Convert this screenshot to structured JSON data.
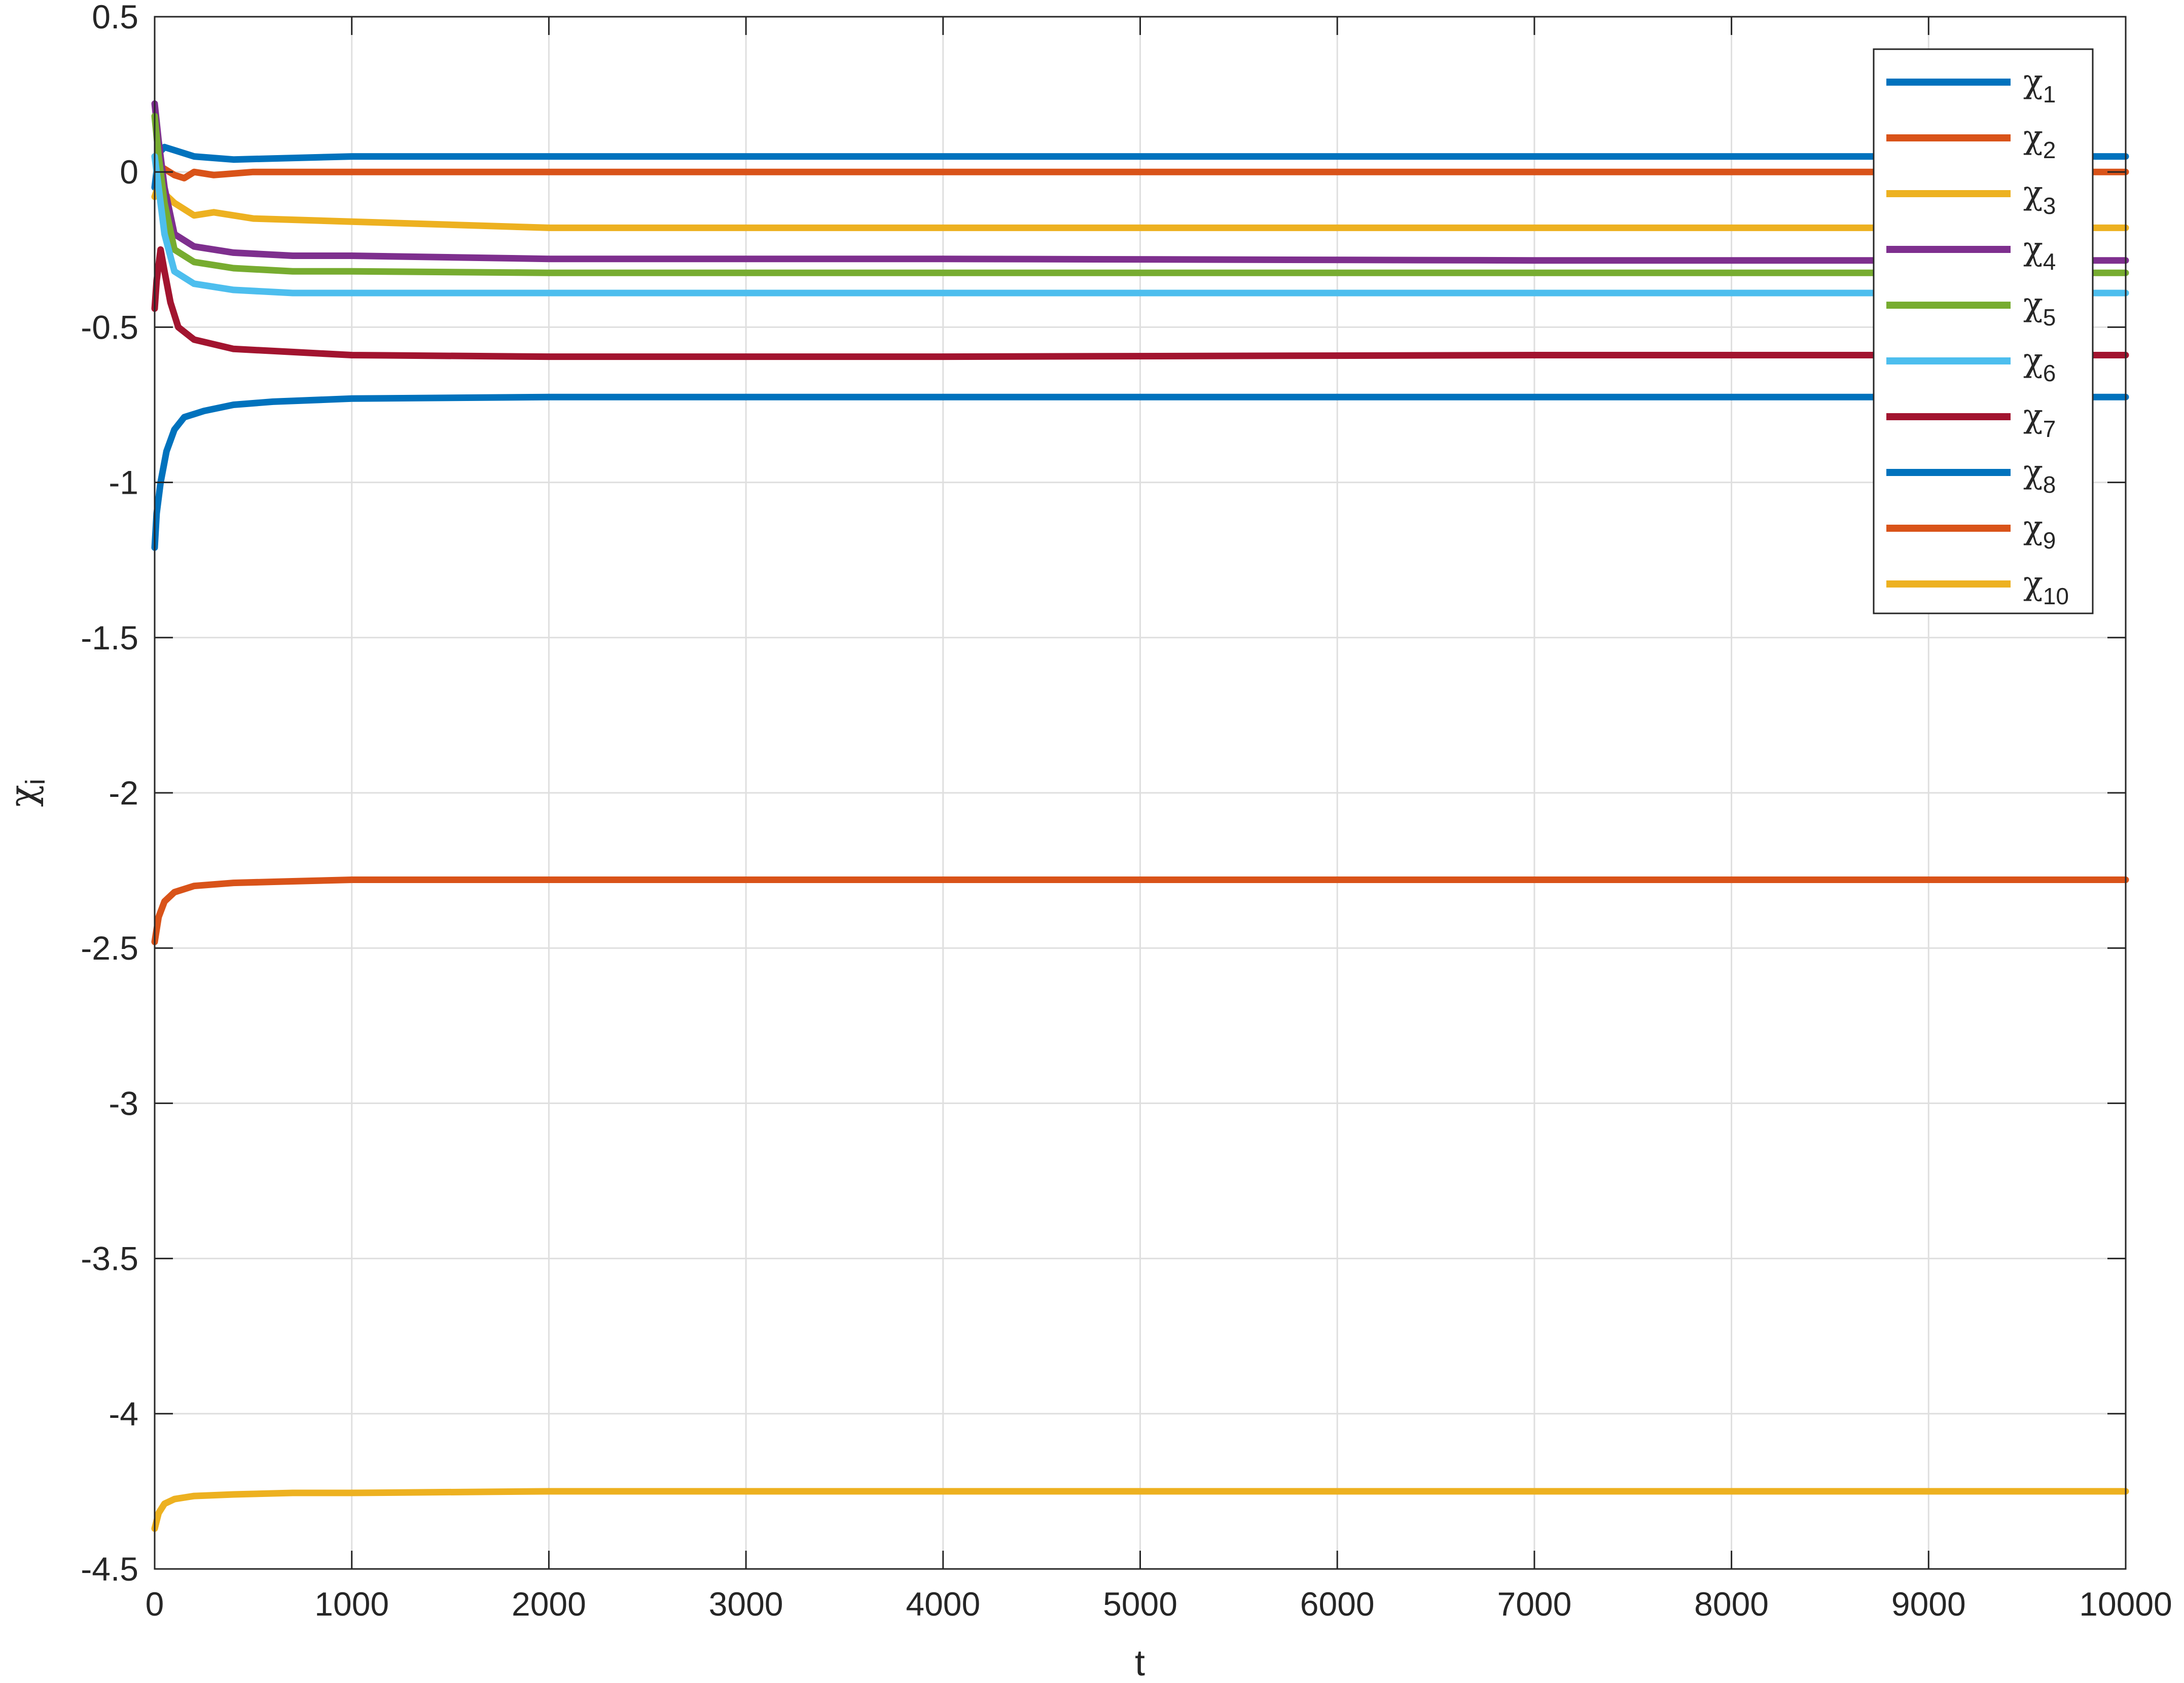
{
  "chart_data": {
    "type": "line",
    "xlabel": "t",
    "ylabel_symbol": "χ",
    "ylabel_sub": "i",
    "xlim": [
      0,
      10000
    ],
    "ylim": [
      -4.5,
      0.5
    ],
    "xticks": [
      0,
      1000,
      2000,
      3000,
      4000,
      5000,
      6000,
      7000,
      8000,
      9000,
      10000
    ],
    "xtick_labels": [
      "0",
      "1000",
      "2000",
      "3000",
      "4000",
      "5000",
      "6000",
      "7000",
      "8000",
      "9000",
      "10000"
    ],
    "yticks": [
      0.5,
      0,
      -0.5,
      -1,
      -1.5,
      -2,
      -2.5,
      -3,
      -3.5,
      -4,
      -4.5
    ],
    "ytick_labels": [
      "0.5",
      "0",
      "-0.5",
      "-1",
      "-1.5",
      "-2",
      "-2.5",
      "-3",
      "-3.5",
      "-4",
      "-4.5"
    ],
    "grid": true,
    "legend_position": "top-right",
    "series": [
      {
        "name": "χ",
        "sub": "1",
        "color": "#0072BD",
        "x": [
          0,
          20,
          50,
          100,
          200,
          400,
          1000,
          3000,
          6000,
          10000
        ],
        "y": [
          -0.05,
          0.06,
          0.08,
          0.07,
          0.05,
          0.04,
          0.05,
          0.05,
          0.05,
          0.05
        ]
      },
      {
        "name": "χ",
        "sub": "2",
        "color": "#D95319",
        "x": [
          0,
          20,
          50,
          100,
          150,
          200,
          300,
          500,
          1000,
          3000,
          6000,
          10000
        ],
        "y": [
          0.05,
          0.02,
          0.01,
          -0.01,
          -0.02,
          0.0,
          -0.01,
          0.0,
          0.0,
          0.0,
          0.0,
          0.0
        ]
      },
      {
        "name": "χ",
        "sub": "3",
        "color": "#EDB120",
        "x": [
          0,
          20,
          50,
          100,
          200,
          300,
          500,
          1000,
          2000,
          4000,
          7000,
          10000
        ],
        "y": [
          -0.08,
          -0.04,
          -0.07,
          -0.1,
          -0.14,
          -0.13,
          -0.15,
          -0.16,
          -0.18,
          -0.18,
          -0.18,
          -0.18
        ]
      },
      {
        "name": "χ",
        "sub": "4",
        "color": "#7E2F8E",
        "x": [
          0,
          20,
          50,
          100,
          200,
          400,
          700,
          1000,
          2000,
          4000,
          7000,
          10000
        ],
        "y": [
          0.22,
          0.1,
          -0.05,
          -0.2,
          -0.24,
          -0.26,
          -0.27,
          -0.27,
          -0.28,
          -0.28,
          -0.285,
          -0.285
        ]
      },
      {
        "name": "χ",
        "sub": "5",
        "color": "#77AC30",
        "x": [
          0,
          20,
          50,
          100,
          200,
          400,
          700,
          1000,
          2000,
          4000,
          7000,
          10000
        ],
        "y": [
          0.18,
          0.05,
          -0.1,
          -0.25,
          -0.29,
          -0.31,
          -0.32,
          -0.32,
          -0.325,
          -0.325,
          -0.325,
          -0.325
        ]
      },
      {
        "name": "χ",
        "sub": "6",
        "color": "#4DBEEE",
        "x": [
          0,
          20,
          50,
          100,
          200,
          400,
          700,
          1000,
          2000,
          4000,
          7000,
          10000
        ],
        "y": [
          0.05,
          -0.05,
          -0.2,
          -0.32,
          -0.36,
          -0.38,
          -0.39,
          -0.39,
          -0.39,
          -0.39,
          -0.39,
          -0.39
        ]
      },
      {
        "name": "χ",
        "sub": "7",
        "color": "#A2142F",
        "x": [
          0,
          10,
          30,
          50,
          80,
          120,
          200,
          400,
          700,
          1000,
          2000,
          4000,
          7000,
          10000
        ],
        "y": [
          -0.44,
          -0.35,
          -0.25,
          -0.32,
          -0.42,
          -0.5,
          -0.54,
          -0.57,
          -0.58,
          -0.59,
          -0.595,
          -0.595,
          -0.59,
          -0.59
        ]
      },
      {
        "name": "χ",
        "sub": "8",
        "color": "#0072BD",
        "x": [
          0,
          10,
          30,
          60,
          100,
          150,
          250,
          400,
          600,
          1000,
          2000,
          4000,
          7000,
          10000
        ],
        "y": [
          -1.21,
          -1.1,
          -1.0,
          -0.9,
          -0.83,
          -0.79,
          -0.77,
          -0.75,
          -0.74,
          -0.73,
          -0.725,
          -0.725,
          -0.725,
          -0.725
        ]
      },
      {
        "name": "χ",
        "sub": "9",
        "color": "#D95319",
        "x": [
          0,
          20,
          50,
          100,
          200,
          400,
          700,
          1000,
          2000,
          5000,
          10000
        ],
        "y": [
          -2.48,
          -2.4,
          -2.35,
          -2.32,
          -2.3,
          -2.29,
          -2.285,
          -2.28,
          -2.28,
          -2.28,
          -2.28
        ]
      },
      {
        "name": "χ",
        "sub": "10",
        "color": "#EDB120",
        "x": [
          0,
          20,
          50,
          100,
          200,
          400,
          700,
          1000,
          2000,
          5000,
          10000
        ],
        "y": [
          -4.37,
          -4.32,
          -4.29,
          -4.275,
          -4.265,
          -4.26,
          -4.255,
          -4.255,
          -4.25,
          -4.25,
          -4.25
        ]
      }
    ]
  }
}
